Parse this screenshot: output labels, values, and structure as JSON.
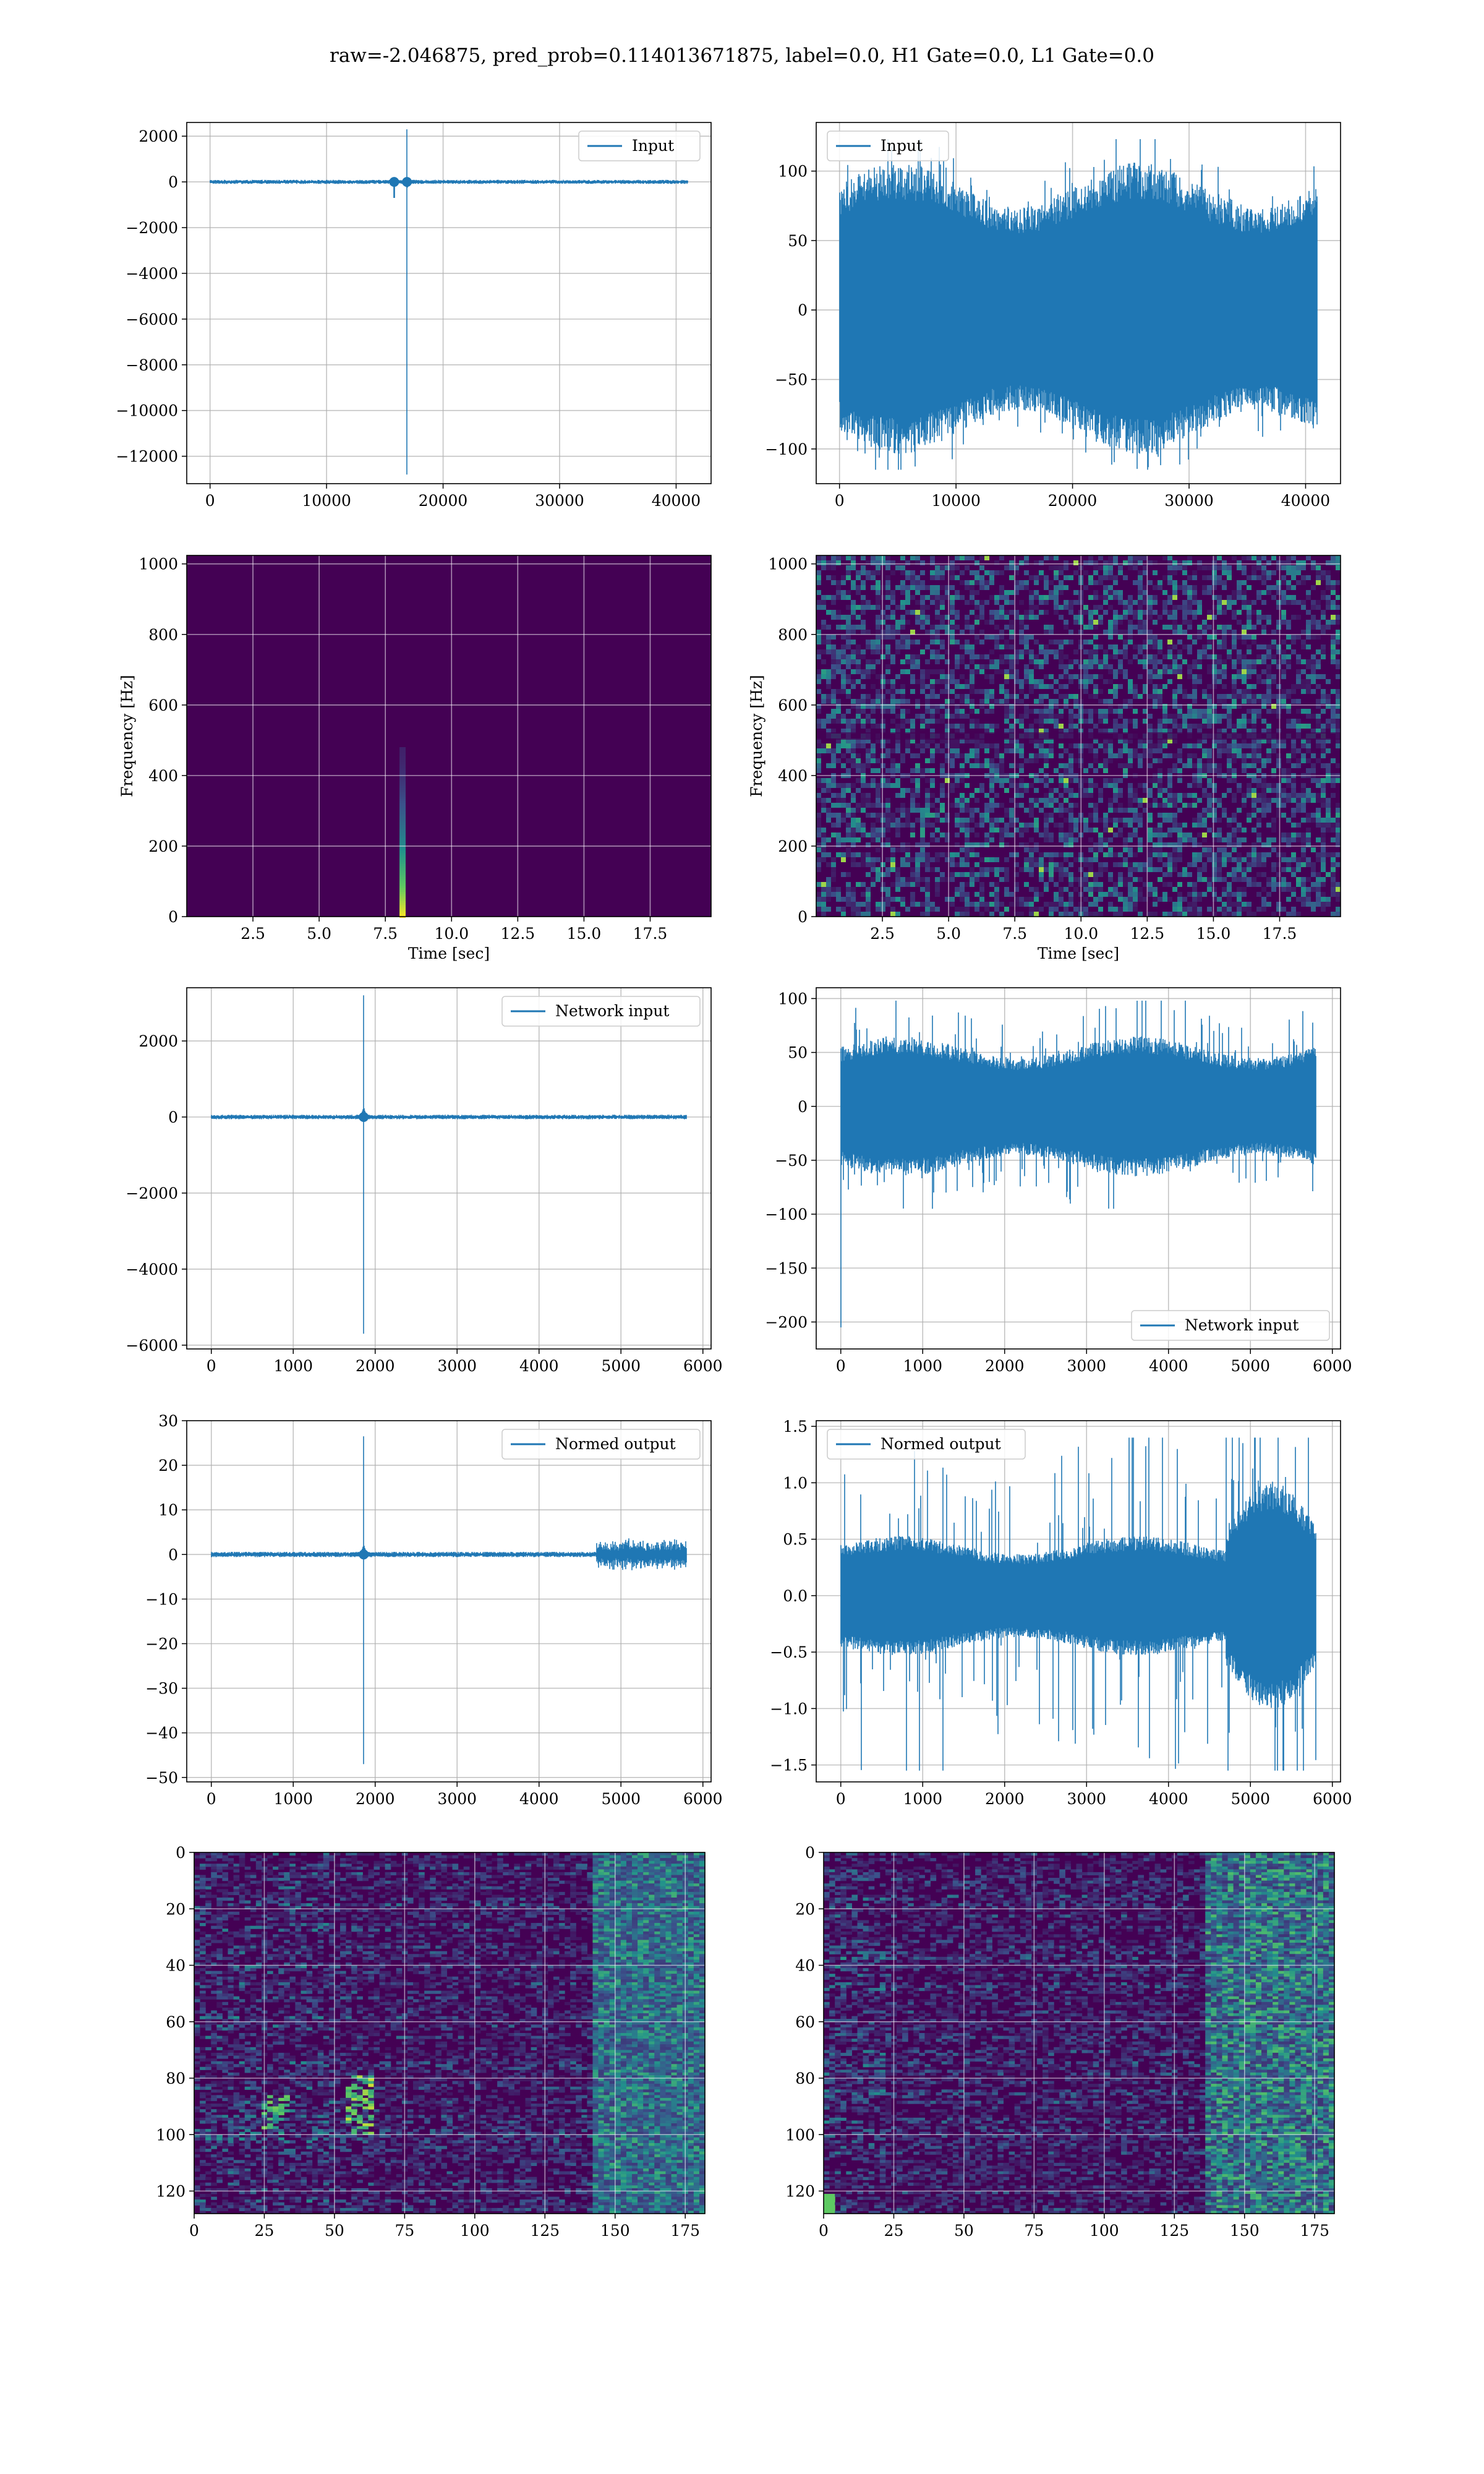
{
  "figure": {
    "suptitle": "raw=-2.046875, pred_prob=0.114013671875, label=0.0, H1 Gate=0.0, L1 Gate=0.0",
    "colors": {
      "line": "#1f77b4",
      "grid": "#b0b0b0",
      "viridis_low": "#440154",
      "viridis_mid": "#21918c",
      "viridis_high": "#fde725"
    }
  },
  "chart_data": [
    {
      "id": "r1c1",
      "type": "line",
      "legend": {
        "labels": [
          "Input"
        ],
        "placement": "upper right"
      },
      "xlim": [
        -2000,
        43000
      ],
      "ylim": [
        -13200,
        2600
      ],
      "xticks": [
        0,
        10000,
        20000,
        30000,
        40000
      ],
      "yticks": [
        2000,
        0,
        -2000,
        -4000,
        -6000,
        -8000,
        -10000,
        -12000
      ],
      "ytick_labels": [
        "2000",
        "0",
        "−2000",
        "−4000",
        "−6000",
        "−8000",
        "−10000",
        "−12000"
      ],
      "grid": true,
      "signal": {
        "n": 41000,
        "noise_amp": 60,
        "spikes": [
          {
            "x": 15800,
            "low": -700,
            "high": 150
          },
          {
            "x": 16900,
            "low": -12800,
            "high": 2300
          }
        ]
      }
    },
    {
      "id": "r1c2",
      "type": "line",
      "legend": {
        "labels": [
          "Input"
        ],
        "placement": "upper left"
      },
      "xlim": [
        -2000,
        43000
      ],
      "ylim": [
        -125,
        135
      ],
      "xticks": [
        0,
        10000,
        20000,
        30000,
        40000
      ],
      "yticks": [
        100,
        50,
        0,
        -50,
        -100
      ],
      "ytick_labels": [
        "100",
        "50",
        "0",
        "−50",
        "−100"
      ],
      "grid": true,
      "signal": {
        "n": 41000,
        "band_high": 90,
        "band_low": -88,
        "peak_high": 123,
        "peak_low": -115
      }
    },
    {
      "id": "r2c1",
      "type": "heatmap",
      "xlabel": "Time [sec]",
      "ylabel": "Frequency [Hz]",
      "xlim": [
        0,
        19.8
      ],
      "ylim": [
        0,
        1024
      ],
      "xticks": [
        2.5,
        5.0,
        7.5,
        10.0,
        12.5,
        15.0,
        17.5
      ],
      "xtick_labels": [
        "2.5",
        "5.0",
        "7.5",
        "10.0",
        "12.5",
        "15.0",
        "17.5"
      ],
      "yticks": [
        0,
        200,
        400,
        600,
        800,
        1000
      ],
      "grid": true,
      "feature": {
        "x": 8.15,
        "y_max": 480
      }
    },
    {
      "id": "r2c2",
      "type": "heatmap",
      "xlabel": "Time [sec]",
      "ylabel": "Frequency [Hz]",
      "xlim": [
        0,
        19.8
      ],
      "ylim": [
        0,
        1024
      ],
      "xticks": [
        2.5,
        5.0,
        7.5,
        10.0,
        12.5,
        15.0,
        17.5
      ],
      "xtick_labels": [
        "2.5",
        "5.0",
        "7.5",
        "10.0",
        "12.5",
        "15.0",
        "17.5"
      ],
      "yticks": [
        0,
        200,
        400,
        600,
        800,
        1000
      ],
      "grid": true
    },
    {
      "id": "r3c1",
      "type": "line",
      "legend": {
        "labels": [
          "Network input"
        ],
        "placement": "upper right"
      },
      "xlim": [
        -300,
        6100
      ],
      "ylim": [
        -6100,
        3400
      ],
      "xticks": [
        0,
        1000,
        2000,
        3000,
        4000,
        5000,
        6000
      ],
      "yticks": [
        2000,
        0,
        -2000,
        -4000,
        -6000
      ],
      "ytick_labels": [
        "2000",
        "0",
        "−2000",
        "−4000",
        "−6000"
      ],
      "grid": true,
      "signal": {
        "n": 5800,
        "noise_amp": 40,
        "spikes": [
          {
            "x": 1860,
            "low": -5700,
            "high": 3200
          }
        ]
      }
    },
    {
      "id": "r3c2",
      "type": "line",
      "legend": {
        "labels": [
          "Network input"
        ],
        "placement": "lower right"
      },
      "xlim": [
        -300,
        6100
      ],
      "ylim": [
        -225,
        110
      ],
      "xticks": [
        0,
        1000,
        2000,
        3000,
        4000,
        5000,
        6000
      ],
      "yticks": [
        100,
        50,
        0,
        -50,
        -100,
        -150,
        -200
      ],
      "ytick_labels": [
        "100",
        "50",
        "0",
        "−50",
        "−100",
        "−150",
        "−200"
      ],
      "grid": true,
      "signal": {
        "n": 5800,
        "band_high": 55,
        "band_low": -55,
        "peak_high": 98,
        "peak_low": -95,
        "first_spike_low": -205
      }
    },
    {
      "id": "r4c1",
      "type": "line",
      "legend": {
        "labels": [
          "Normed output"
        ],
        "placement": "upper right"
      },
      "xlim": [
        -300,
        6100
      ],
      "ylim": [
        -51,
        30
      ],
      "xticks": [
        0,
        1000,
        2000,
        3000,
        4000,
        5000,
        6000
      ],
      "yticks": [
        30,
        20,
        10,
        0,
        -10,
        -20,
        -30,
        -40,
        -50
      ],
      "ytick_labels": [
        "30",
        "20",
        "10",
        "0",
        "−10",
        "−20",
        "−30",
        "−40",
        "−50"
      ],
      "grid": true,
      "signal": {
        "n": 5800,
        "noise_amp": 0.4,
        "spikes": [
          {
            "x": 1860,
            "low": -47,
            "high": 26.5
          }
        ],
        "burst_start": 4700,
        "burst_amp": 2.5
      }
    },
    {
      "id": "r4c2",
      "type": "line",
      "legend": {
        "labels": [
          "Normed output"
        ],
        "placement": "upper left"
      },
      "xlim": [
        -300,
        6100
      ],
      "ylim": [
        -1.65,
        1.55
      ],
      "xticks": [
        0,
        1000,
        2000,
        3000,
        4000,
        5000,
        6000
      ],
      "yticks": [
        1.5,
        1.0,
        0.5,
        0.0,
        -0.5,
        -1.0,
        -1.5
      ],
      "ytick_labels": [
        "1.5",
        "1.0",
        "0.5",
        "0.0",
        "−0.5",
        "−1.0",
        "−1.5"
      ],
      "grid": true,
      "signal": {
        "n": 5800,
        "band_high": 0.45,
        "band_low": -0.45,
        "peak_high": 1.4,
        "peak_low": -1.55,
        "burst_start": 4700
      }
    },
    {
      "id": "r5c1",
      "type": "heatmap",
      "xlim": [
        0,
        182
      ],
      "ylim": [
        128,
        0
      ],
      "xticks": [
        0,
        25,
        50,
        75,
        100,
        125,
        150,
        175
      ],
      "yticks": [
        0,
        20,
        40,
        60,
        80,
        100,
        120
      ],
      "grid": true
    },
    {
      "id": "r5c2",
      "type": "heatmap",
      "xlim": [
        0,
        182
      ],
      "ylim": [
        128,
        0
      ],
      "xticks": [
        0,
        25,
        50,
        75,
        100,
        125,
        150,
        175
      ],
      "yticks": [
        0,
        20,
        40,
        60,
        80,
        100,
        120
      ],
      "grid": true
    }
  ]
}
